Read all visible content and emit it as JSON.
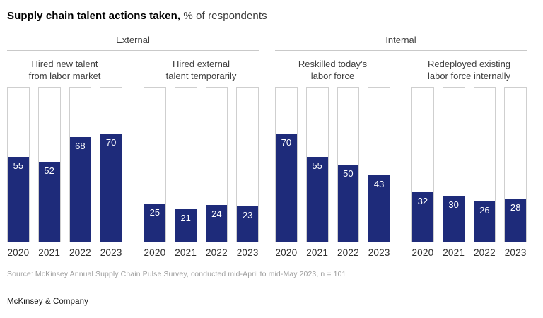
{
  "title": {
    "bold": "Supply chain talent actions taken,",
    "regular": "% of respondents"
  },
  "sections": [
    {
      "label": "External"
    },
    {
      "label": "Internal"
    }
  ],
  "chart_data": {
    "type": "bar",
    "title": "Supply chain talent actions taken, % of respondents",
    "categories": [
      "2020",
      "2021",
      "2022",
      "2023"
    ],
    "series": [
      {
        "name": "Hired new talent from labor market",
        "section": "External",
        "label_lines": [
          "Hired new talent",
          "from labor market"
        ],
        "values": [
          55,
          52,
          68,
          70
        ]
      },
      {
        "name": "Hired external talent temporarily",
        "section": "External",
        "label_lines": [
          "Hired external",
          "talent temporarily"
        ],
        "values": [
          25,
          21,
          24,
          23
        ]
      },
      {
        "name": "Reskilled today’s labor force",
        "section": "Internal",
        "label_lines": [
          "Reskilled today’s",
          "labor force"
        ],
        "values": [
          70,
          55,
          50,
          43
        ]
      },
      {
        "name": "Redeployed existing labor force internally",
        "section": "Internal",
        "label_lines": [
          "Redeployed existing",
          "labor force internally"
        ],
        "values": [
          32,
          30,
          26,
          28
        ]
      }
    ],
    "ylim": [
      0,
      100
    ],
    "unit": "% of respondents",
    "grid": false,
    "legend": "none",
    "bar_style": "filled bar inside 100% outlined container, value label inside top of fill"
  },
  "source": {
    "text": "Source: McKinsey Annual Supply Chain Pulse Survey, conducted mid-April to mid-May 2023, n = 101"
  },
  "footer": {
    "text": "McKinsey & Company"
  },
  "colors": {
    "bar_fill": "#1e2b7a",
    "bar_container_border": "#cfcfcf",
    "section_rule": "#c9c9c9",
    "value_label": "#ffffff"
  }
}
